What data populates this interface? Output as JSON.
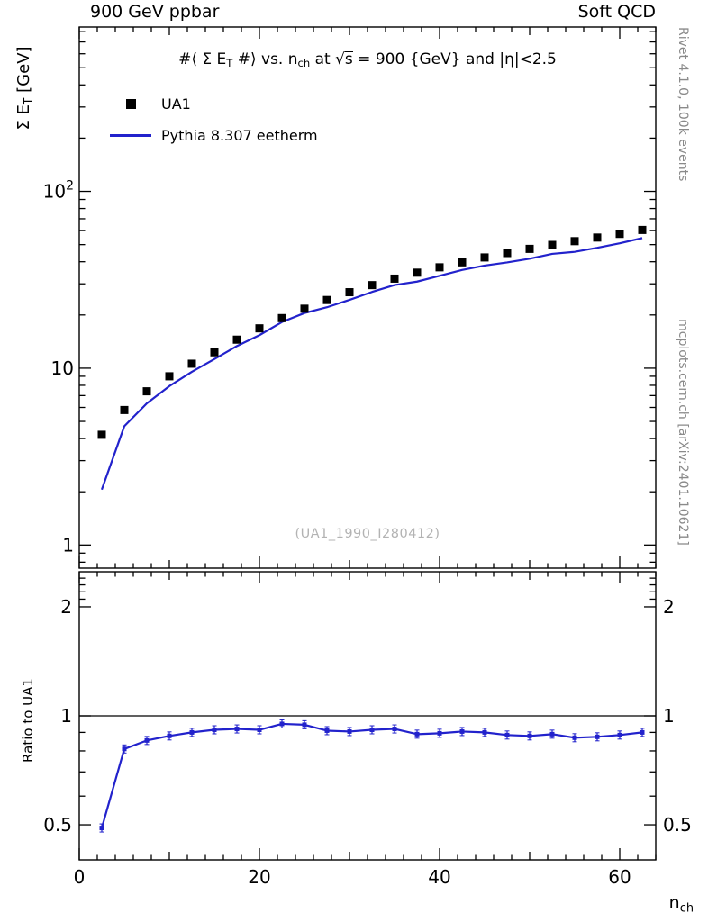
{
  "header": {
    "left": "900 GeV ppbar",
    "right": "Soft QCD"
  },
  "title_segments": [
    {
      "type": "t",
      "text": "#⟨ Σ E"
    },
    {
      "type": "sub",
      "text": "T"
    },
    {
      "type": "t",
      "text": " #⟩ vs. n"
    },
    {
      "type": "sub",
      "text": "ch"
    },
    {
      "type": "t",
      "text": " at √"
    },
    {
      "type": "ovl",
      "text": "s"
    },
    {
      "type": "t",
      "text": " = 900 {GeV} and |η|<2.5"
    }
  ],
  "legend": [
    {
      "label": "UA1",
      "marker": "square",
      "color": "#000000"
    },
    {
      "label": "Pythia 8.307 eetherm",
      "marker": "line",
      "color": "#2222cc"
    }
  ],
  "watermark": "(UA1_1990_I280412)",
  "side_notes": {
    "top": "Rivet 4.1.0, 100k events",
    "bottom": "mcplots.cern.ch [arXiv:2401.10621]"
  },
  "axes": {
    "x": {
      "min": 0,
      "max": 64,
      "majors": [
        0,
        20,
        40,
        60
      ],
      "medium_step": 10,
      "minor_step": 2,
      "label_segments": [
        {
          "type": "t",
          "text": "n"
        },
        {
          "type": "sub",
          "text": "ch"
        }
      ]
    },
    "y_main": {
      "scale": "log",
      "min": 0.74,
      "max": 850,
      "majors": [
        1,
        10,
        100
      ],
      "label_segments": [
        {
          "type": "t",
          "text": "Σ E"
        },
        {
          "type": "sub",
          "text": "T"
        },
        {
          "type": "t",
          "text": " [GeV]"
        }
      ]
    },
    "y_ratio": {
      "scale": "log",
      "min": 0.4,
      "max": 2.5,
      "majors": [
        0.5,
        1,
        2
      ],
      "minors": [
        0.6,
        0.7,
        0.8,
        0.9,
        2.1,
        2.2,
        2.3,
        2.4
      ],
      "label": "Ratio to UA1"
    }
  },
  "chart_data": {
    "type": "scatter",
    "title": "<Sum ET> vs. nch at sqrt(s) = 900 GeV and |eta|<2.5",
    "xlabel": "n_ch",
    "ylabel": "Sum E_T [GeV]",
    "ratio_label": "Ratio to UA1",
    "xlim": [
      0,
      64
    ],
    "main_ylim": [
      0.74,
      850
    ],
    "ratio_ylim": [
      0.4,
      2.5
    ],
    "x": [
      2.5,
      5,
      7.5,
      10,
      12.5,
      15,
      17.5,
      20,
      22.5,
      25,
      27.5,
      30,
      32.5,
      35,
      37.5,
      40,
      42.5,
      45,
      47.5,
      50,
      52.5,
      55,
      57.5,
      60,
      62.5
    ],
    "series": [
      {
        "name": "UA1",
        "type": "scatter",
        "marker": "square",
        "color": "#000000",
        "y": [
          4.2,
          5.8,
          7.4,
          9.0,
          10.6,
          12.3,
          14.5,
          16.8,
          19.2,
          21.7,
          24.3,
          26.9,
          29.5,
          32.1,
          34.7,
          37.2,
          39.7,
          42.3,
          44.8,
          47.3,
          49.8,
          52.3,
          54.8,
          57.5,
          60.5
        ]
      },
      {
        "name": "Pythia 8.307 eetherm",
        "type": "line",
        "color": "#2222cc",
        "ratio_to_ua1": [
          0.49,
          0.81,
          0.855,
          0.88,
          0.9,
          0.915,
          0.92,
          0.915,
          0.95,
          0.945,
          0.91,
          0.905,
          0.915,
          0.92,
          0.89,
          0.895,
          0.905,
          0.9,
          0.885,
          0.88,
          0.89,
          0.87,
          0.875,
          0.885,
          0.9
        ]
      }
    ]
  }
}
